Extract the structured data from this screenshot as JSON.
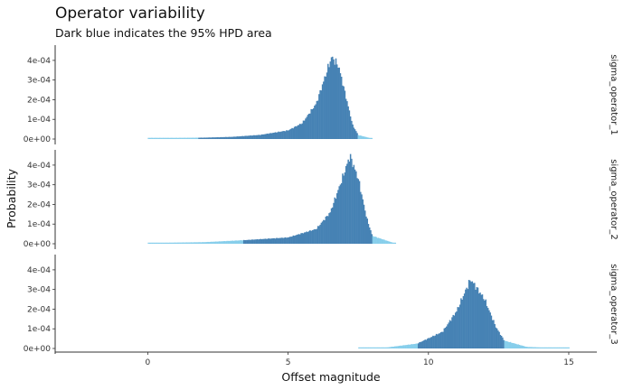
{
  "colors": {
    "hpd": "#4682b4",
    "outside": "#87ceeb",
    "axis": "#333333"
  },
  "chart_data": {
    "type": "histogram",
    "title": "Operator variability",
    "subtitle": "Dark blue indicates the 95% HPD area",
    "xlabel": "Offset magnitude",
    "ylabel": "Probability",
    "xlim": [
      -3.3,
      16
    ],
    "x_ticks": [
      0,
      5,
      10,
      15
    ],
    "x_tick_labels": [
      "0",
      "5",
      "10",
      "15"
    ],
    "ylim": [
      0,
      0.00045
    ],
    "y_ticks": [
      0,
      0.0001,
      0.0002,
      0.0003,
      0.0004
    ],
    "y_tick_labels": [
      "0e+00",
      "1e-04",
      "2e-04",
      "3e-04",
      "4e-04"
    ],
    "legend": "none",
    "grid": false,
    "facets": [
      {
        "label": "sigma_operator_1",
        "range": [
          0,
          8
        ],
        "hpd": [
          1.8,
          7.5
        ],
        "points": [
          [
            0,
            6e-06
          ],
          [
            1,
            6e-06
          ],
          [
            2,
            7e-06
          ],
          [
            3,
            1.1e-05
          ],
          [
            4,
            2.1e-05
          ],
          [
            5,
            4.4e-05
          ],
          [
            5.5,
            8.1e-05
          ],
          [
            6,
            0.00018
          ],
          [
            6.3,
            0.00031
          ],
          [
            6.55,
            0.000418
          ],
          [
            6.8,
            0.00037
          ],
          [
            7.0,
            0.00025
          ],
          [
            7.3,
            7e-05
          ],
          [
            7.5,
            2e-05
          ],
          [
            8.0,
            2e-06
          ]
        ]
      },
      {
        "label": "sigma_operator_2",
        "range": [
          0,
          8.8
        ],
        "hpd": [
          3.4,
          8.0
        ],
        "points": [
          [
            0,
            4e-06
          ],
          [
            2,
            8e-06
          ],
          [
            3.4,
            1.8e-05
          ],
          [
            5,
            3.2e-05
          ],
          [
            6,
            7.5e-05
          ],
          [
            6.5,
            0.00016
          ],
          [
            6.9,
            0.00032
          ],
          [
            7.2,
            0.000448
          ],
          [
            7.5,
            0.00033
          ],
          [
            7.8,
            0.00013
          ],
          [
            8.0,
            4e-05
          ],
          [
            8.8,
            2e-06
          ]
        ]
      },
      {
        "label": "sigma_operator_3",
        "range": [
          7.5,
          15
        ],
        "hpd": [
          9.6,
          12.7
        ],
        "points": [
          [
            7.5,
            0
          ],
          [
            8.5,
            5e-06
          ],
          [
            9.6,
            2.5e-05
          ],
          [
            10.5,
            8.5e-05
          ],
          [
            11,
            0.00019
          ],
          [
            11.5,
            0.000352
          ],
          [
            12,
            0.00025
          ],
          [
            12.4,
            0.00011
          ],
          [
            12.7,
            4e-05
          ],
          [
            13.5,
            8e-06
          ],
          [
            15,
            0
          ]
        ]
      }
    ]
  }
}
